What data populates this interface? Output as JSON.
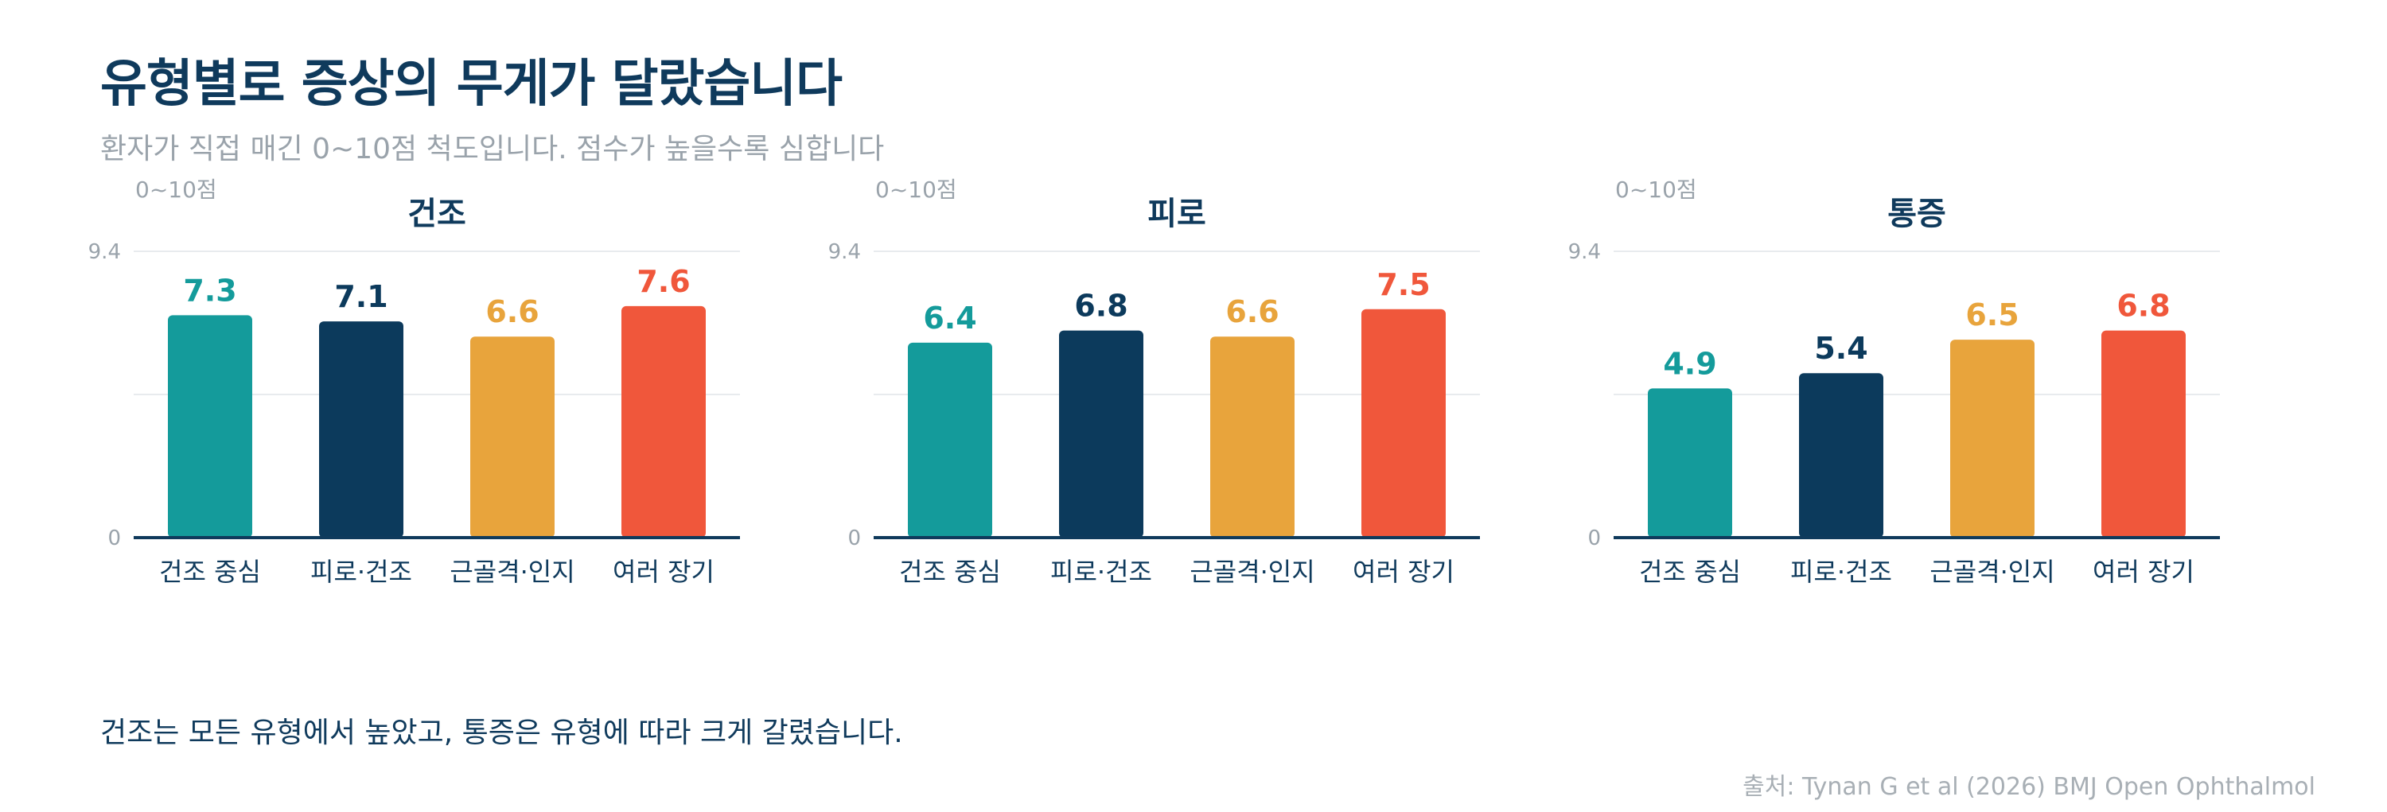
{
  "title": "유형별로 증상의 무게가 달랐습니다",
  "subtitle": "환자가 직접 매긴 0~10점 척도입니다. 점수가 높을수록 심합니다",
  "takeaway": "건조는 모든 유형에서 높았고, 통증은 유형에 따라 크게 갈렸습니다.",
  "source": "출처: Tynan G et al (2026) BMJ Open Ophthalmol",
  "colors": {
    "teal": "#149b9b",
    "navy": "#0c3a5c",
    "amber": "#e8a43c",
    "red": "#f0573b"
  },
  "chart_data": [
    {
      "type": "bar",
      "title": "건조",
      "unit_label": "0~10점",
      "categories": [
        "건조 중심",
        "피로·건조",
        "근골격·인지",
        "여러 장기"
      ],
      "values": [
        7.3,
        7.1,
        6.6,
        7.6
      ],
      "bar_colors": [
        "#149b9b",
        "#0c3a5c",
        "#e8a43c",
        "#f0573b"
      ],
      "ylim": [
        0,
        9.4
      ],
      "yticks": [
        "0",
        "9.4"
      ],
      "grid": true
    },
    {
      "type": "bar",
      "title": "피로",
      "unit_label": "0~10점",
      "categories": [
        "건조 중심",
        "피로·건조",
        "근골격·인지",
        "여러 장기"
      ],
      "values": [
        6.4,
        6.8,
        6.6,
        7.5
      ],
      "bar_colors": [
        "#149b9b",
        "#0c3a5c",
        "#e8a43c",
        "#f0573b"
      ],
      "ylim": [
        0,
        9.4
      ],
      "yticks": [
        "0",
        "9.4"
      ],
      "grid": true
    },
    {
      "type": "bar",
      "title": "통증",
      "unit_label": "0~10점",
      "categories": [
        "건조 중심",
        "피로·건조",
        "근골격·인지",
        "여러 장기"
      ],
      "values": [
        4.9,
        5.4,
        6.5,
        6.8
      ],
      "bar_colors": [
        "#149b9b",
        "#0c3a5c",
        "#e8a43c",
        "#f0573b"
      ],
      "ylim": [
        0,
        9.4
      ],
      "yticks": [
        "0",
        "9.4"
      ],
      "grid": true
    }
  ]
}
